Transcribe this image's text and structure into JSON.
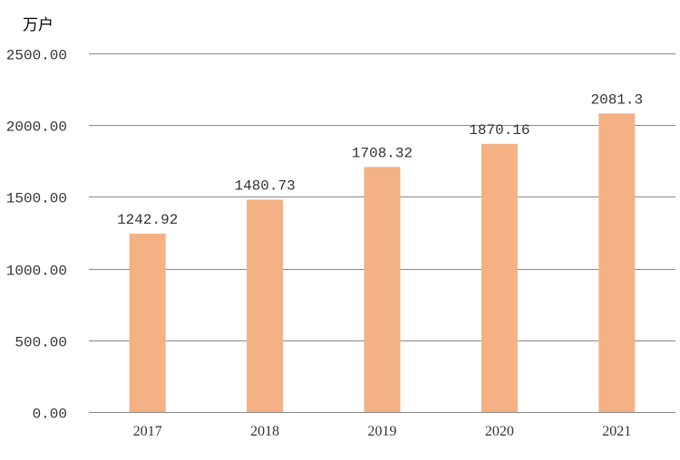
{
  "chart_data": {
    "type": "bar",
    "unit_label": "万户",
    "categories": [
      "2017",
      "2018",
      "2019",
      "2020",
      "2021"
    ],
    "values": [
      1242.92,
      1480.73,
      1708.32,
      1870.16,
      2081.3
    ],
    "data_labels": [
      "1242.92",
      "1480.73",
      "1708.32",
      "1870.16",
      "2081.3"
    ],
    "y_ticks": [
      {
        "value": 0,
        "label": "0.00"
      },
      {
        "value": 500,
        "label": "500.00"
      },
      {
        "value": 1000,
        "label": "1000.00"
      },
      {
        "value": 1500,
        "label": "1500.00"
      },
      {
        "value": 2000,
        "label": "2000.00"
      },
      {
        "value": 2500,
        "label": "2500.00"
      }
    ],
    "ylim": [
      0,
      2500
    ],
    "grid": true,
    "legend": "none",
    "bar_color": "#F4B183",
    "grid_color": "#898989"
  }
}
